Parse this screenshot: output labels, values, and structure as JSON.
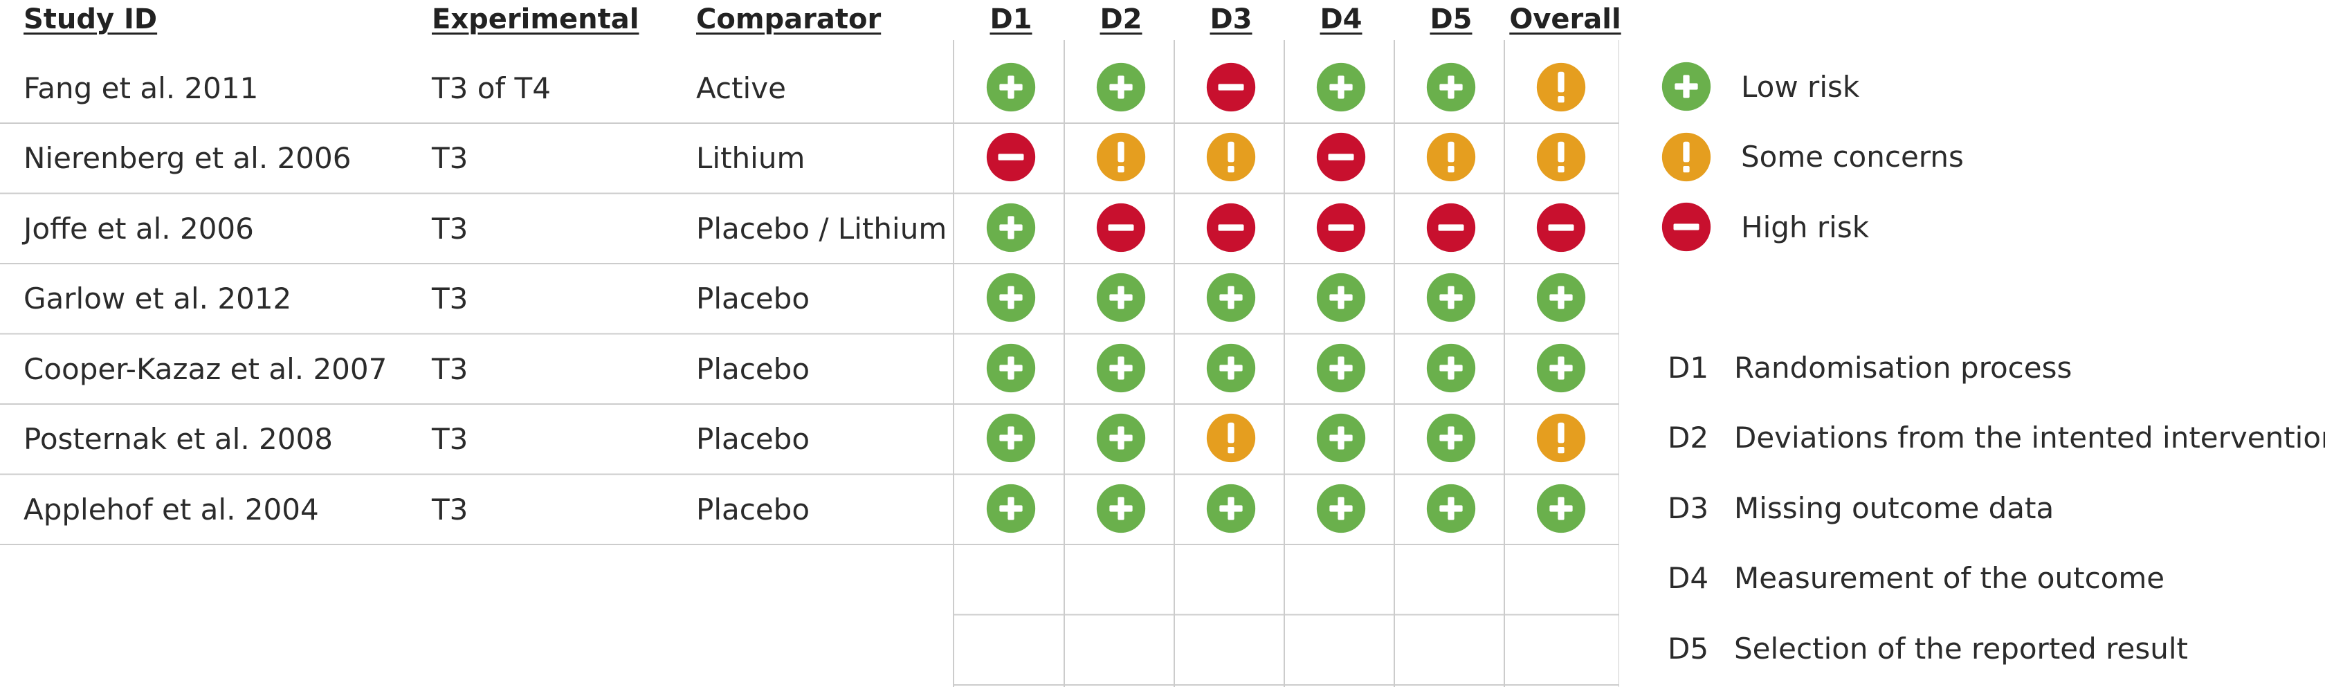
{
  "headers": {
    "study": "Study ID",
    "experimental": "Experimental",
    "comparator": "Comparator",
    "domains": [
      "D1",
      "D2",
      "D3",
      "D4",
      "D5",
      "Overall"
    ]
  },
  "chart_data": {
    "type": "table",
    "columns": [
      "Study ID",
      "Experimental",
      "Comparator",
      "D1",
      "D2",
      "D3",
      "D4",
      "D5",
      "Overall"
    ],
    "rows": [
      {
        "study": "Fang et al. 2011",
        "experimental": "T3 of T4",
        "comparator": "Active",
        "judgements": [
          "low",
          "low",
          "high",
          "low",
          "low",
          "some"
        ]
      },
      {
        "study": "Nierenberg et al. 2006",
        "experimental": "T3",
        "comparator": "Lithium",
        "judgements": [
          "high",
          "some",
          "some",
          "high",
          "some",
          "some"
        ]
      },
      {
        "study": "Joffe et al. 2006",
        "experimental": "T3",
        "comparator": "Placebo / Lithium",
        "judgements": [
          "low",
          "high",
          "high",
          "high",
          "high",
          "high"
        ]
      },
      {
        "study": "Garlow et al. 2012",
        "experimental": "T3",
        "comparator": "Placebo",
        "judgements": [
          "low",
          "low",
          "low",
          "low",
          "low",
          "low"
        ]
      },
      {
        "study": "Cooper-Kazaz et al. 2007",
        "experimental": "T3",
        "comparator": "Placebo",
        "judgements": [
          "low",
          "low",
          "low",
          "low",
          "low",
          "low"
        ]
      },
      {
        "study": "Posternak et al. 2008",
        "experimental": "T3",
        "comparator": "Placebo",
        "judgements": [
          "low",
          "low",
          "some",
          "low",
          "low",
          "some"
        ]
      },
      {
        "study": "Applehof et al. 2004",
        "experimental": "T3",
        "comparator": "Placebo",
        "judgements": [
          "low",
          "low",
          "low",
          "low",
          "low",
          "low"
        ]
      }
    ],
    "empty_rows": 2
  },
  "legend": [
    {
      "key": "low",
      "label": "Low risk",
      "color": "#6ab04c",
      "icon": "plus-icon"
    },
    {
      "key": "some",
      "label": "Some concerns",
      "color": "#e59e1f",
      "icon": "exclamation-icon"
    },
    {
      "key": "high",
      "label": "High risk",
      "color": "#c8102e",
      "icon": "minus-icon"
    }
  ],
  "domain_legend": [
    {
      "code": "D1",
      "label": "Randomisation process"
    },
    {
      "code": "D2",
      "label": "Deviations from the intented interventions"
    },
    {
      "code": "D3",
      "label": "Missing outcome data"
    },
    {
      "code": "D4",
      "label": "Measurement of the outcome"
    },
    {
      "code": "D5",
      "label": "Selection of the reported result"
    }
  ]
}
